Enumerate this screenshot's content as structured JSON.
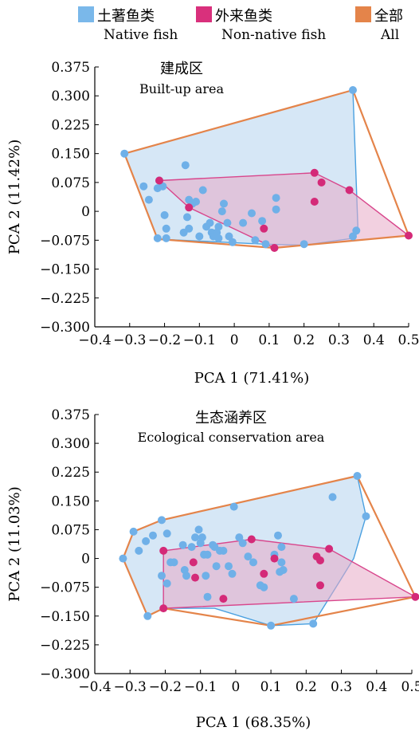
{
  "legend": {
    "items": [
      {
        "zh": "土著鱼类",
        "en": "Native fish",
        "color": "#7ab8ea"
      },
      {
        "zh": "外来鱼类",
        "en": "Non-native fish",
        "color": "#d9307c"
      },
      {
        "zh": "全部",
        "en": "All",
        "color": "#e4844a"
      }
    ]
  },
  "colors": {
    "native_point": "#6fb0e8",
    "native_hull_fill": "#cfe3f5",
    "native_hull_stroke": "#4aa0e0",
    "nonnative_point": "#d42a78",
    "nonnative_hull_fill": "#e8a9c6",
    "nonnative_hull_stroke": "#d8468c",
    "all_hull_stroke": "#e4844a"
  },
  "chart_data": [
    {
      "type": "scatter",
      "title": "建成区",
      "subtitle": "Built-up area",
      "xlabel": "PCA 1 (71.41%)",
      "ylabel": "PCA 2 (11.42%)",
      "xlim": [
        -0.4,
        0.5
      ],
      "ylim": [
        -0.3,
        0.375
      ],
      "xticks": [
        "−0.4",
        "−0.3",
        "−0.2",
        "−0.1",
        "0",
        "0.1",
        "0.2",
        "0.3",
        "0.4",
        "0.5"
      ],
      "xtick_values": [
        -0.4,
        -0.3,
        -0.2,
        -0.1,
        0,
        0.1,
        0.2,
        0.3,
        0.4,
        0.5
      ],
      "yticks": [
        "0.375",
        "0.300",
        "0.225",
        "0.150",
        "0.075",
        "0",
        "−0.075",
        "−0.150",
        "−0.225",
        "−0.300"
      ],
      "ytick_values": [
        0.375,
        0.3,
        0.225,
        0.15,
        0.075,
        0,
        -0.075,
        -0.15,
        -0.225,
        -0.3
      ],
      "grid": false,
      "series": [
        {
          "name": "Native fish",
          "points": [
            [
              -0.315,
              0.15
            ],
            [
              0.34,
              0.315
            ],
            [
              -0.26,
              0.065
            ],
            [
              -0.245,
              0.03
            ],
            [
              -0.22,
              -0.07
            ],
            [
              -0.215,
              0.08
            ],
            [
              -0.22,
              0.06
            ],
            [
              -0.205,
              0.065
            ],
            [
              -0.2,
              -0.01
            ],
            [
              -0.195,
              -0.045
            ],
            [
              -0.145,
              -0.055
            ],
            [
              -0.13,
              -0.045
            ],
            [
              -0.12,
              0.02
            ],
            [
              -0.135,
              -0.015
            ],
            [
              -0.13,
              0.03
            ],
            [
              -0.11,
              0.025
            ],
            [
              -0.09,
              0.055
            ],
            [
              -0.1,
              -0.065
            ],
            [
              -0.08,
              -0.04
            ],
            [
              -0.065,
              -0.055
            ],
            [
              -0.06,
              -0.065
            ],
            [
              -0.05,
              -0.055
            ],
            [
              -0.045,
              -0.07
            ],
            [
              -0.07,
              -0.03
            ],
            [
              -0.045,
              -0.04
            ],
            [
              -0.035,
              0
            ],
            [
              -0.03,
              0.02
            ],
            [
              -0.02,
              -0.03
            ],
            [
              -0.015,
              -0.065
            ],
            [
              -0.005,
              -0.08
            ],
            [
              0.025,
              -0.03
            ],
            [
              0.05,
              -0.005
            ],
            [
              0.06,
              -0.075
            ],
            [
              0.08,
              -0.025
            ],
            [
              0.12,
              0.005
            ],
            [
              0.12,
              0.035
            ],
            [
              0.2,
              -0.085
            ],
            [
              0.34,
              -0.065
            ],
            [
              0.35,
              -0.05
            ],
            [
              -0.14,
              0.12
            ],
            [
              -0.195,
              -0.07
            ],
            [
              0.09,
              -0.085
            ]
          ]
        },
        {
          "name": "Non-native fish",
          "points": [
            [
              -0.215,
              0.08
            ],
            [
              -0.13,
              0.01
            ],
            [
              0.085,
              -0.045
            ],
            [
              0.115,
              -0.095
            ],
            [
              0.23,
              0.1
            ],
            [
              0.25,
              0.075
            ],
            [
              0.23,
              0.025
            ],
            [
              0.33,
              0.055
            ],
            [
              0.5,
              -0.063
            ]
          ]
        }
      ],
      "hulls": {
        "native": [
          [
            -0.315,
            0.15
          ],
          [
            0.34,
            0.315
          ],
          [
            0.355,
            -0.055
          ],
          [
            0.34,
            -0.07
          ],
          [
            0.2,
            -0.088
          ],
          [
            0.08,
            -0.085
          ],
          [
            -0.22,
            -0.072
          ]
        ],
        "nonnative": [
          [
            -0.215,
            0.08
          ],
          [
            0.23,
            0.1
          ],
          [
            0.33,
            0.055
          ],
          [
            0.5,
            -0.063
          ],
          [
            0.115,
            -0.095
          ],
          [
            -0.13,
            0.01
          ]
        ],
        "all": [
          [
            -0.315,
            0.15
          ],
          [
            0.34,
            0.315
          ],
          [
            0.5,
            -0.063
          ],
          [
            0.115,
            -0.095
          ],
          [
            -0.22,
            -0.072
          ]
        ]
      }
    },
    {
      "type": "scatter",
      "title": "生态涵养区",
      "subtitle": "Ecological conservation area",
      "xlabel": "PCA 1 (68.35%)",
      "ylabel": "PCA 2 (11.03%)",
      "xlim": [
        -0.4,
        0.5
      ],
      "ylim": [
        -0.3,
        0.375
      ],
      "xticks": [
        "−0.4",
        "−0.3",
        "−0.2",
        "−0.1",
        "0",
        "0.1",
        "0.2",
        "0.3",
        "0.4",
        "0.5"
      ],
      "xtick_values": [
        -0.4,
        -0.3,
        -0.2,
        -0.1,
        0,
        0.1,
        0.2,
        0.3,
        0.4,
        0.5
      ],
      "yticks": [
        "0.375",
        "0.300",
        "0.225",
        "0.150",
        "0.075",
        "0",
        "−0.075",
        "−0.150",
        "−0.225",
        "−0.300"
      ],
      "ytick_values": [
        0.375,
        0.3,
        0.225,
        0.15,
        0.075,
        0,
        -0.075,
        -0.15,
        -0.225,
        -0.3
      ],
      "grid": false,
      "series": [
        {
          "name": "Native fish",
          "points": [
            [
              -0.32,
              0
            ],
            [
              -0.29,
              0.07
            ],
            [
              -0.275,
              0.02
            ],
            [
              -0.255,
              0.045
            ],
            [
              -0.235,
              0.06
            ],
            [
              -0.21,
              0.1
            ],
            [
              -0.195,
              0.065
            ],
            [
              -0.185,
              -0.01
            ],
            [
              -0.21,
              -0.045
            ],
            [
              -0.195,
              -0.065
            ],
            [
              -0.175,
              -0.01
            ],
            [
              -0.15,
              0.035
            ],
            [
              -0.145,
              -0.03
            ],
            [
              -0.125,
              0.03
            ],
            [
              -0.115,
              0.055
            ],
            [
              -0.105,
              0.075
            ],
            [
              -0.1,
              0.04
            ],
            [
              -0.095,
              0.055
            ],
            [
              -0.09,
              0.01
            ],
            [
              -0.085,
              -0.045
            ],
            [
              -0.08,
              0.01
            ],
            [
              -0.065,
              0.035
            ],
            [
              -0.06,
              0.03
            ],
            [
              -0.055,
              -0.02
            ],
            [
              -0.045,
              0.02
            ],
            [
              -0.035,
              0.02
            ],
            [
              -0.02,
              -0.02
            ],
            [
              -0.01,
              -0.04
            ],
            [
              -0.005,
              0.135
            ],
            [
              0.01,
              0.055
            ],
            [
              0.02,
              0.04
            ],
            [
              0.035,
              0.005
            ],
            [
              0.05,
              -0.01
            ],
            [
              0.07,
              -0.07
            ],
            [
              0.08,
              -0.075
            ],
            [
              0.11,
              0.01
            ],
            [
              0.12,
              0.06
            ],
            [
              0.125,
              -0.035
            ],
            [
              0.13,
              0.03
            ],
            [
              0.13,
              -0.01
            ],
            [
              0.135,
              -0.03
            ],
            [
              -0.08,
              -0.1
            ],
            [
              0.165,
              -0.105
            ],
            [
              0.1,
              -0.175
            ],
            [
              0.22,
              -0.17
            ],
            [
              0.275,
              0.16
            ],
            [
              0.345,
              0.215
            ],
            [
              0.37,
              0.11
            ],
            [
              -0.14,
              -0.045
            ],
            [
              -0.25,
              -0.15
            ]
          ]
        },
        {
          "name": "Non-native fish",
          "points": [
            [
              -0.205,
              0.02
            ],
            [
              -0.12,
              -0.01
            ],
            [
              -0.115,
              -0.05
            ],
            [
              -0.035,
              -0.105
            ],
            [
              0.045,
              0.05
            ],
            [
              0.08,
              -0.04
            ],
            [
              0.11,
              0
            ],
            [
              0.23,
              0.005
            ],
            [
              0.24,
              -0.005
            ],
            [
              0.24,
              -0.07
            ],
            [
              0.265,
              0.025
            ],
            [
              0.51,
              -0.1
            ],
            [
              -0.205,
              -0.13
            ]
          ]
        }
      ],
      "hulls": {
        "native": [
          [
            -0.32,
            0
          ],
          [
            -0.29,
            0.07
          ],
          [
            -0.21,
            0.1
          ],
          [
            0.345,
            0.215
          ],
          [
            0.37,
            0.11
          ],
          [
            0.335,
            0
          ],
          [
            0.295,
            -0.06
          ],
          [
            0.22,
            -0.17
          ],
          [
            0.1,
            -0.175
          ],
          [
            -0.06,
            -0.13
          ],
          [
            -0.205,
            -0.13
          ],
          [
            -0.25,
            -0.15
          ]
        ],
        "nonnative": [
          [
            -0.205,
            0.02
          ],
          [
            0.045,
            0.05
          ],
          [
            0.265,
            0.025
          ],
          [
            0.51,
            -0.1
          ],
          [
            -0.205,
            -0.13
          ]
        ],
        "all": [
          [
            -0.32,
            0
          ],
          [
            -0.29,
            0.07
          ],
          [
            -0.21,
            0.1
          ],
          [
            0.345,
            0.215
          ],
          [
            0.51,
            -0.1
          ],
          [
            0.1,
            -0.175
          ],
          [
            -0.205,
            -0.13
          ],
          [
            -0.25,
            -0.15
          ]
        ]
      }
    }
  ]
}
